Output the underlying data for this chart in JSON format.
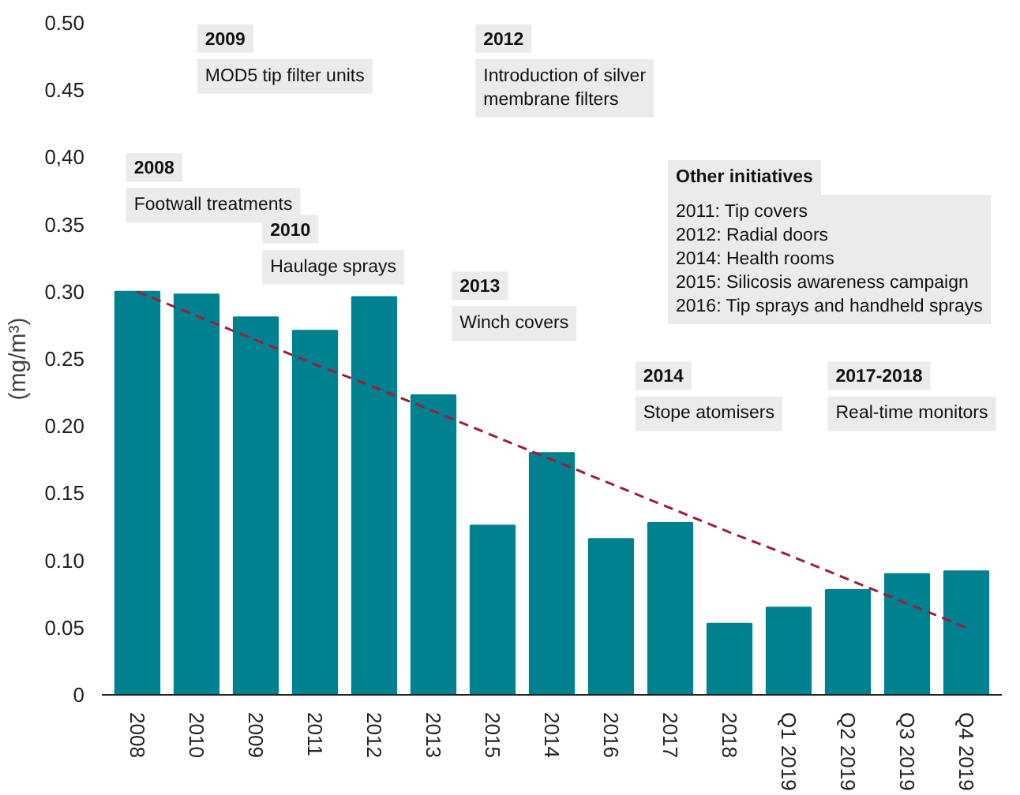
{
  "chart_data": {
    "type": "bar",
    "ylabel": "(mg/m³)",
    "categories": [
      "2008",
      "2010",
      "2009",
      "2011",
      "2012",
      "2013",
      "2015",
      "2014",
      "2016",
      "2017",
      "2018",
      "Q1 2019",
      "Q2 2019",
      "Q3 2019",
      "Q4 2019"
    ],
    "series": [
      {
        "color": "#00818f",
        "values": [
          0.3,
          0.298,
          0.281,
          0.271,
          0.296,
          0.223,
          0.126,
          0.18,
          0.116,
          0.128,
          0.053,
          0.065,
          0.078,
          0.09,
          0.092
        ]
      },
      {
        "type": "line",
        "color": "#9e1b3c",
        "line_style": "dashed",
        "values": [
          0.3,
          0.282,
          0.264,
          0.246,
          0.229,
          0.211,
          0.193,
          0.175,
          0.157,
          0.139,
          0.121,
          0.104,
          0.086,
          0.068,
          0.05
        ]
      }
    ],
    "ylim": [
      0,
      0.5
    ],
    "yticks": [
      0,
      {
        "value": 0.05,
        "label": "0.05"
      },
      {
        "value": 0.1,
        "label": "0.10"
      },
      {
        "value": 0.15,
        "label": "0.15"
      },
      {
        "value": 0.2,
        "label": "0.20"
      },
      {
        "value": 0.25,
        "label": "0.25"
      },
      {
        "value": 0.3,
        "label": "0.30"
      },
      {
        "value": 0.35,
        "label": "0.35"
      },
      {
        "value": 0.4,
        "label": "0,40"
      },
      {
        "value": 0.45,
        "label": "0.45"
      },
      {
        "value": 0.5,
        "label": "0.50"
      }
    ],
    "grid": false,
    "annotations": [
      "2008\nFootwall treatments",
      "2009\nMOD5 tip filter units",
      "2010\nHaulage sprays",
      "2012\nIntroduction of silver\nmembrane filters",
      "2013\nWinch covers",
      "Other initiatives\n2011: Tip covers\n2012: Radial doors\n2014: Health rooms\n2015: Silicosis awareness campaign\n2016: Tip sprays and handheld sprays",
      "2014\nStope atomisers",
      "2017-2018\nReal-time monitors"
    ]
  }
}
